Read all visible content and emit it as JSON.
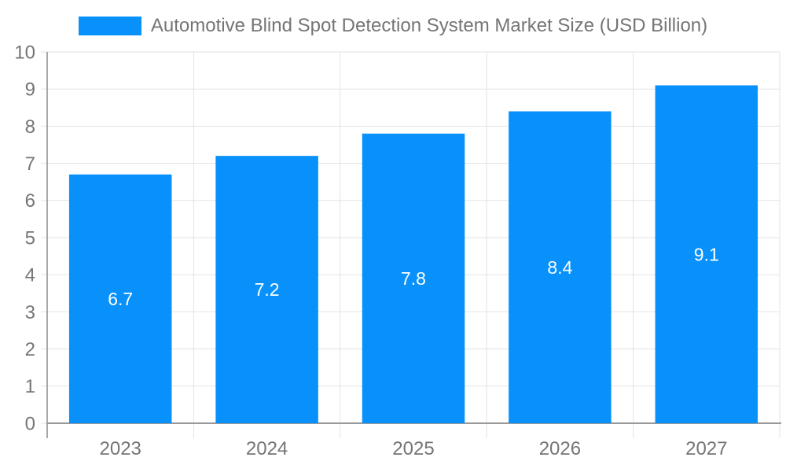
{
  "chart_data": {
    "type": "bar",
    "title": "Automotive Blind Spot Detection System Market Size (USD Billion)",
    "categories": [
      "2023",
      "2024",
      "2025",
      "2026",
      "2027"
    ],
    "series": [
      {
        "name": "Automotive Blind Spot Detection System Market Size (USD Billion)",
        "values": [
          6.7,
          7.2,
          7.8,
          8.4,
          9.1
        ]
      }
    ],
    "value_labels": [
      "6.7",
      "7.2",
      "7.8",
      "8.4",
      "9.1"
    ],
    "xlabel": "",
    "ylabel": "",
    "ylim": [
      0,
      10
    ],
    "ytick_step": 1,
    "yticks": [
      0,
      1,
      2,
      3,
      4,
      5,
      6,
      7,
      8,
      9,
      10
    ],
    "grid": true,
    "legend_position": "top",
    "colors": {
      "bar": "#0991fb",
      "grid": "#e3e3e3",
      "axis_x": "#999999",
      "axis_y": "#8c8c8c",
      "tick_label": "#757575",
      "value_label": "#ffffff",
      "background": "#ffffff"
    }
  }
}
